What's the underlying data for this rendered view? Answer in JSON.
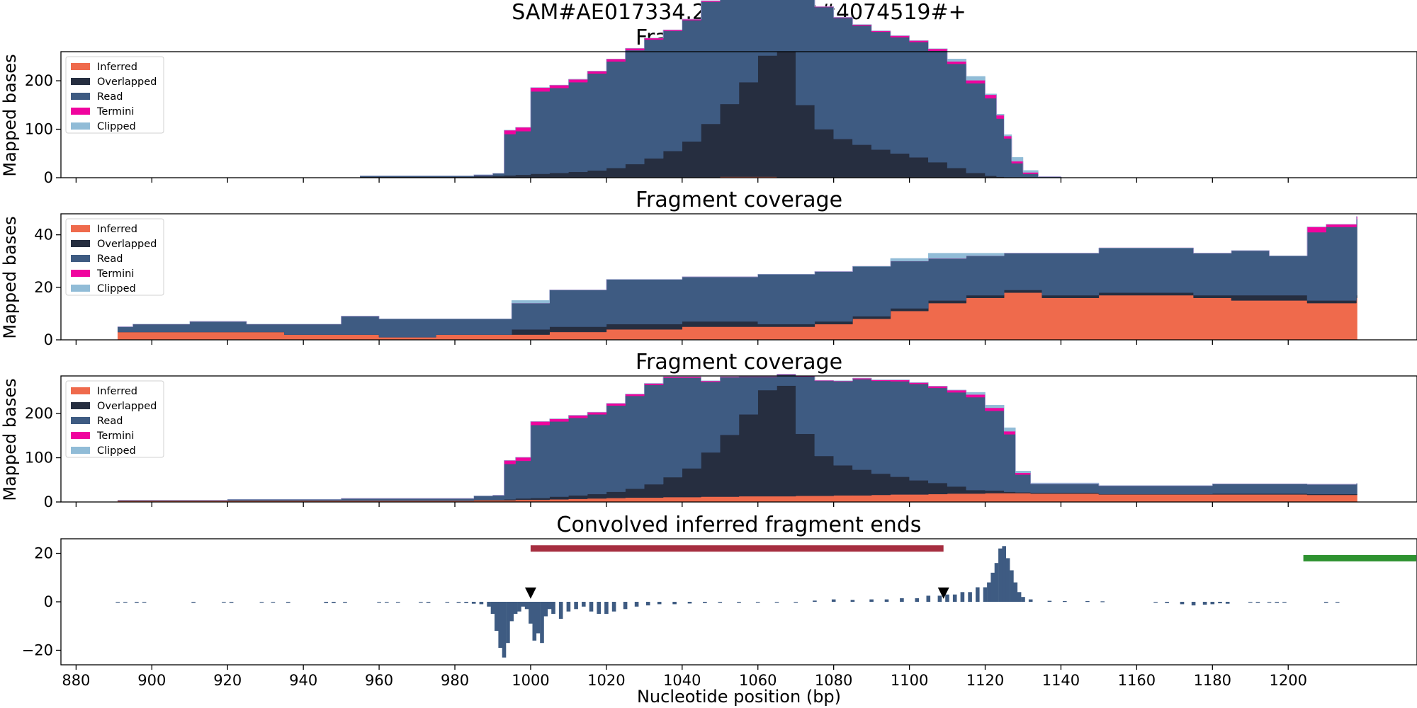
{
  "suptitle": "SAM#AE017334.2#4074410#4074519#+",
  "colors": {
    "inferred": "#ef6a4c",
    "overlapped": "#262e40",
    "read": "#3e5b82",
    "termini": "#f0049e",
    "clipped": "#91bcd7",
    "conv": "#3e5b82",
    "marker": "#000000",
    "red_bar": "#a62e40",
    "green_bar": "#2e9230"
  },
  "chart_data": [
    {
      "type": "area",
      "title": "Fragment coverage",
      "ylabel": "Mapped bases",
      "xlim": [
        876,
        1234
      ],
      "ylim": [
        0,
        260
      ],
      "yticks": [
        0,
        100,
        200
      ],
      "legend": [
        "Inferred",
        "Overlapped",
        "Read",
        "Termini",
        "Clipped"
      ],
      "legend_loc": "upper left",
      "x": [
        955,
        985,
        990,
        993,
        996,
        1000,
        1005,
        1010,
        1015,
        1020,
        1025,
        1030,
        1035,
        1040,
        1045,
        1050,
        1055,
        1060,
        1065,
        1070,
        1075,
        1080,
        1085,
        1090,
        1095,
        1100,
        1105,
        1110,
        1115,
        1120,
        1123,
        1125,
        1127,
        1130,
        1134,
        1140
      ],
      "series": [
        {
          "name": "Inferred",
          "values": [
            0,
            0,
            0,
            0,
            0,
            0,
            0,
            0,
            0,
            0,
            0,
            0,
            0,
            0,
            1,
            2,
            2,
            2,
            1,
            0,
            0,
            0,
            0,
            0,
            0,
            0,
            0,
            0,
            0,
            0,
            0,
            0,
            0,
            0,
            0,
            0
          ]
        },
        {
          "name": "Overlapped",
          "values": [
            2,
            3,
            4,
            5,
            6,
            8,
            10,
            12,
            15,
            20,
            28,
            40,
            55,
            75,
            110,
            150,
            195,
            250,
            260,
            150,
            100,
            80,
            68,
            58,
            50,
            42,
            32,
            20,
            10,
            4,
            2,
            1,
            0,
            0,
            0,
            0
          ]
        },
        {
          "name": "Read",
          "values": [
            2,
            3,
            5,
            85,
            90,
            170,
            175,
            185,
            200,
            220,
            235,
            245,
            248,
            250,
            252,
            254,
            255,
            256,
            256,
            255,
            252,
            250,
            246,
            243,
            240,
            238,
            230,
            215,
            185,
            160,
            120,
            80,
            30,
            8,
            2,
            1
          ]
        },
        {
          "name": "Termini",
          "values": [
            0,
            0,
            0,
            8,
            8,
            8,
            6,
            6,
            5,
            5,
            4,
            3,
            2,
            2,
            2,
            1,
            1,
            1,
            1,
            1,
            1,
            1,
            2,
            2,
            3,
            3,
            4,
            5,
            6,
            7,
            7,
            5,
            4,
            3,
            0,
            0
          ]
        },
        {
          "name": "Clipped",
          "values": [
            0,
            0,
            0,
            0,
            0,
            0,
            0,
            0,
            0,
            0,
            0,
            0,
            0,
            0,
            0,
            0,
            0,
            0,
            0,
            0,
            0,
            0,
            0,
            0,
            0,
            0,
            0,
            5,
            8,
            2,
            2,
            3,
            8,
            4,
            0,
            0
          ]
        }
      ]
    },
    {
      "type": "area",
      "title": "Fragment coverage",
      "ylabel": "Mapped bases",
      "xlim": [
        876,
        1234
      ],
      "ylim": [
        0,
        48
      ],
      "yticks": [
        0,
        20,
        40
      ],
      "legend": [
        "Inferred",
        "Overlapped",
        "Read",
        "Termini",
        "Clipped"
      ],
      "legend_loc": "upper left",
      "x": [
        891,
        895,
        910,
        925,
        935,
        950,
        960,
        975,
        990,
        995,
        1005,
        1020,
        1040,
        1060,
        1075,
        1085,
        1095,
        1105,
        1115,
        1125,
        1135,
        1150,
        1165,
        1175,
        1185,
        1195,
        1205,
        1210,
        1218
      ],
      "series": [
        {
          "name": "Inferred",
          "values": [
            3,
            3,
            3,
            3,
            2,
            2,
            1,
            2,
            2,
            2,
            3,
            4,
            5,
            5,
            6,
            8,
            11,
            14,
            16,
            18,
            16,
            17,
            17,
            16,
            15,
            15,
            14,
            14,
            16
          ]
        },
        {
          "name": "Overlapped",
          "values": [
            0,
            0,
            0,
            0,
            0,
            0,
            0,
            0,
            0,
            2,
            2,
            2,
            2,
            1,
            1,
            1,
            1,
            1,
            1,
            1,
            1,
            1,
            1,
            1,
            2,
            2,
            1,
            1,
            1
          ]
        },
        {
          "name": "Read",
          "values": [
            2,
            3,
            4,
            3,
            4,
            7,
            7,
            6,
            6,
            10,
            14,
            17,
            17,
            19,
            19,
            19,
            18,
            16,
            15,
            14,
            16,
            17,
            17,
            16,
            17,
            15,
            26,
            28,
            29
          ]
        },
        {
          "name": "Termini",
          "values": [
            0,
            0,
            0,
            0,
            0,
            0,
            0,
            0,
            0,
            0,
            0,
            0,
            0,
            0,
            0,
            0,
            0,
            0,
            0,
            0,
            0,
            0,
            0,
            0,
            0,
            0,
            2,
            1,
            1
          ]
        },
        {
          "name": "Clipped",
          "values": [
            0,
            0,
            0,
            0,
            0,
            0,
            0,
            0,
            0,
            1,
            0,
            0,
            0,
            0,
            0,
            0,
            1,
            2,
            1,
            0,
            0,
            0,
            0,
            0,
            0,
            0,
            0,
            0,
            0
          ]
        }
      ]
    },
    {
      "type": "area",
      "title": "Fragment coverage",
      "ylabel": "Mapped bases",
      "xlim": [
        876,
        1234
      ],
      "ylim": [
        0,
        285
      ],
      "yticks": [
        0,
        100,
        200
      ],
      "legend": [
        "Inferred",
        "Overlapped",
        "Read",
        "Termini",
        "Clipped"
      ],
      "legend_loc": "upper left",
      "x": [
        891,
        920,
        950,
        985,
        990,
        993,
        996,
        1000,
        1005,
        1010,
        1015,
        1020,
        1025,
        1030,
        1035,
        1040,
        1045,
        1050,
        1055,
        1060,
        1065,
        1070,
        1075,
        1080,
        1085,
        1090,
        1095,
        1100,
        1105,
        1110,
        1115,
        1120,
        1125,
        1128,
        1132,
        1150,
        1180,
        1205,
        1218
      ],
      "series": [
        {
          "name": "Inferred",
          "values": [
            3,
            3,
            3,
            4,
            4,
            4,
            5,
            5,
            6,
            7,
            8,
            9,
            10,
            10,
            11,
            11,
            12,
            12,
            13,
            13,
            13,
            14,
            14,
            15,
            15,
            16,
            17,
            17,
            18,
            19,
            19,
            20,
            20,
            20,
            19,
            17,
            17,
            16,
            16
          ]
        },
        {
          "name": "Overlapped",
          "values": [
            0,
            0,
            0,
            1,
            1,
            2,
            3,
            4,
            6,
            8,
            10,
            14,
            20,
            30,
            45,
            65,
            100,
            140,
            185,
            240,
            250,
            140,
            90,
            68,
            58,
            48,
            40,
            32,
            25,
            16,
            8,
            6,
            3,
            2,
            2,
            1,
            2,
            2,
            2
          ]
        },
        {
          "name": "Read",
          "values": [
            1,
            3,
            5,
            9,
            10,
            80,
            85,
            165,
            170,
            175,
            180,
            195,
            210,
            225,
            225,
            205,
            160,
            130,
            85,
            30,
            25,
            130,
            170,
            190,
            205,
            210,
            216,
            218,
            215,
            213,
            210,
            180,
            130,
            40,
            20,
            19,
            22,
            22,
            24
          ]
        },
        {
          "name": "Termini",
          "values": [
            0,
            0,
            0,
            0,
            0,
            8,
            8,
            8,
            6,
            6,
            5,
            5,
            4,
            3,
            2,
            2,
            2,
            1,
            1,
            1,
            1,
            1,
            1,
            1,
            2,
            2,
            3,
            3,
            4,
            5,
            6,
            7,
            7,
            4,
            0,
            0,
            0,
            0,
            0
          ]
        },
        {
          "name": "Clipped",
          "values": [
            0,
            0,
            0,
            0,
            0,
            0,
            0,
            0,
            0,
            0,
            0,
            0,
            0,
            0,
            0,
            0,
            0,
            0,
            0,
            0,
            0,
            0,
            0,
            0,
            0,
            0,
            0,
            0,
            0,
            0,
            5,
            6,
            8,
            4,
            2,
            0,
            0,
            0,
            0
          ]
        }
      ]
    },
    {
      "type": "bar",
      "title": "Convolved inferred fragment ends",
      "xlabel": "Nucleotide position (bp)",
      "xlim": [
        876,
        1234
      ],
      "ylim": [
        -26,
        26
      ],
      "yticks": [
        -20,
        0,
        20
      ],
      "xticks": [
        880,
        900,
        920,
        940,
        960,
        980,
        1000,
        1020,
        1040,
        1060,
        1080,
        1100,
        1120,
        1140,
        1160,
        1180,
        1200
      ],
      "x": [
        891,
        893,
        896,
        898,
        911,
        919,
        921,
        929,
        932,
        936,
        946,
        948,
        951,
        960,
        962,
        965,
        971,
        973,
        978,
        981,
        983,
        985,
        987,
        989,
        990,
        991,
        992,
        993,
        994,
        995,
        996,
        997,
        998,
        999,
        1000,
        1001,
        1002,
        1003,
        1004,
        1005,
        1006,
        1008,
        1010,
        1012,
        1014,
        1016,
        1018,
        1020,
        1022,
        1025,
        1028,
        1031,
        1034,
        1038,
        1042,
        1046,
        1050,
        1055,
        1060,
        1065,
        1070,
        1075,
        1080,
        1085,
        1090,
        1094,
        1098,
        1102,
        1105,
        1108,
        1110,
        1112,
        1114,
        1116,
        1118,
        1120,
        1121,
        1122,
        1123,
        1124,
        1125,
        1126,
        1127,
        1128,
        1129,
        1130,
        1132,
        1137,
        1141,
        1147,
        1151,
        1165,
        1168,
        1172,
        1175,
        1178,
        1180,
        1182,
        1184,
        1190,
        1192,
        1195,
        1197,
        1199,
        1210,
        1213
      ],
      "values": [
        -0.3,
        -0.3,
        -0.4,
        -0.3,
        -0.4,
        -0.3,
        -0.4,
        -0.3,
        -0.3,
        -0.4,
        -0.5,
        -0.5,
        -0.4,
        -0.3,
        -0.3,
        -0.3,
        -0.3,
        -0.4,
        -0.3,
        -0.4,
        -0.5,
        -0.8,
        -1.0,
        -2.0,
        -5.0,
        -12,
        -19,
        -23,
        -17,
        -8,
        -5,
        -4,
        -2,
        -3,
        -9,
        -16,
        -13,
        -17,
        -6,
        -3,
        -5,
        -7,
        -4,
        -3,
        -2,
        -4,
        -5,
        -5,
        -4,
        -3,
        -2,
        -1.5,
        -1,
        -1,
        -0.7,
        -0.5,
        -0.4,
        -0.4,
        -0.3,
        -0.3,
        -0.3,
        0.5,
        1,
        0.8,
        1,
        1,
        1.5,
        1.5,
        2.5,
        2.5,
        3,
        3,
        4,
        4,
        6,
        6,
        8,
        12,
        16,
        22,
        23,
        18,
        13,
        8,
        4,
        2,
        1,
        0.4,
        0.3,
        0.3,
        0.2,
        -0.2,
        -0.5,
        -1,
        -1.5,
        -1.2,
        -1,
        -0.6,
        -0.8,
        -0.3,
        -0.4,
        -0.3,
        -0.4,
        -0.3,
        -0.4,
        -0.3
      ],
      "markers": [
        {
          "x": 1000,
          "y": 3
        },
        {
          "x": 1109,
          "y": 3
        }
      ],
      "bars": [
        {
          "x0": 1000,
          "x1": 1109,
          "y": 22,
          "color": "red_bar"
        },
        {
          "x0": 1204,
          "x1": 1234,
          "y": 18,
          "color": "green_bar"
        }
      ]
    }
  ]
}
